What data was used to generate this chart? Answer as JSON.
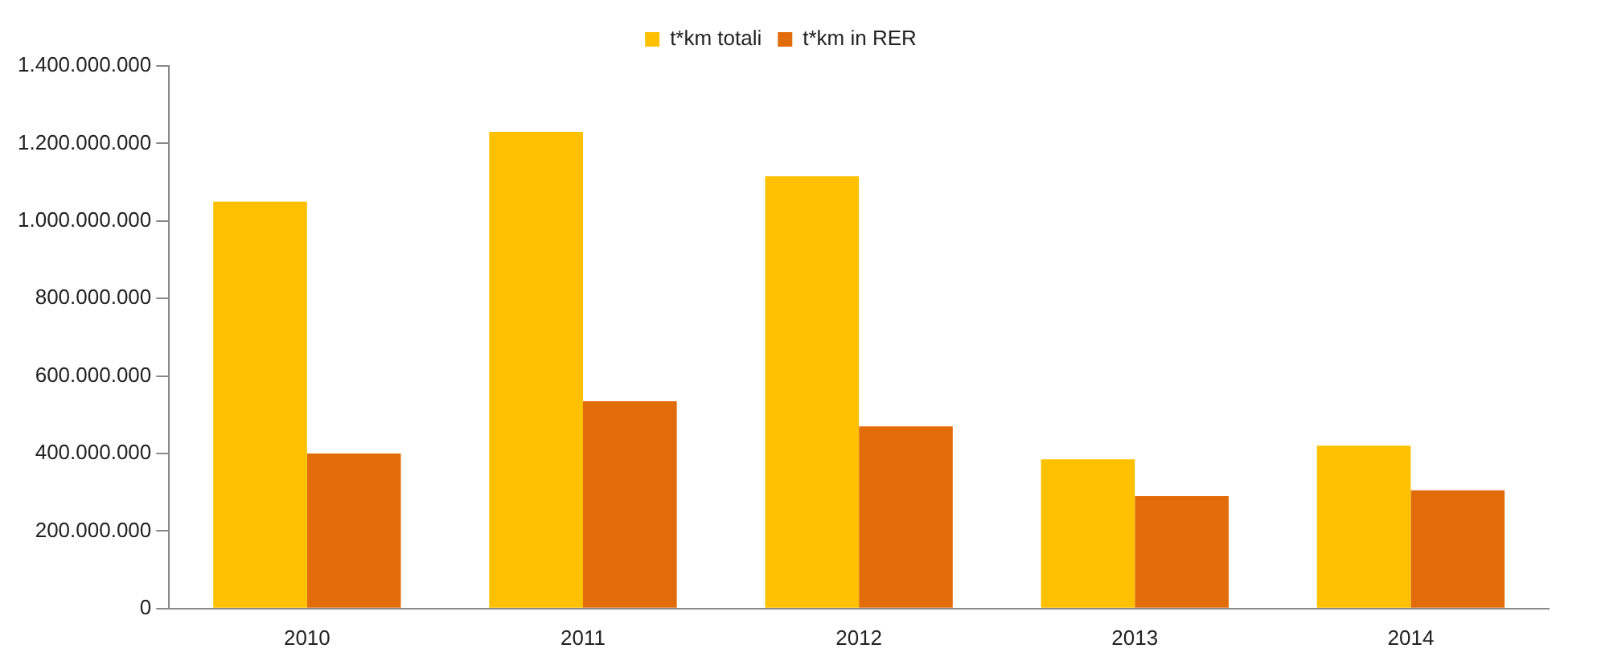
{
  "chart_data": {
    "type": "bar",
    "categories": [
      "2010",
      "2011",
      "2012",
      "2013",
      "2014"
    ],
    "series": [
      {
        "name": "t*km totali",
        "color": "#ffc000",
        "values": [
          1050000000,
          1230000000,
          1115000000,
          385000000,
          420000000
        ]
      },
      {
        "name": "t*km in RER",
        "color": "#e36c0a",
        "values": [
          400000000,
          535000000,
          470000000,
          290000000,
          305000000
        ]
      }
    ],
    "ylim": [
      0,
      1400000000
    ],
    "yticks": [
      {
        "value": 0,
        "label": "0"
      },
      {
        "value": 200000000,
        "label": "200.000.000"
      },
      {
        "value": 400000000,
        "label": "400.000.000"
      },
      {
        "value": 600000000,
        "label": "600.000.000"
      },
      {
        "value": 800000000,
        "label": "800.000.000"
      },
      {
        "value": 1000000000,
        "label": "1.000.000.000"
      },
      {
        "value": 1200000000,
        "label": "1.200.000.000"
      },
      {
        "value": 1400000000,
        "label": "1.400.000.000"
      }
    ],
    "grid": false,
    "legend": "top"
  }
}
